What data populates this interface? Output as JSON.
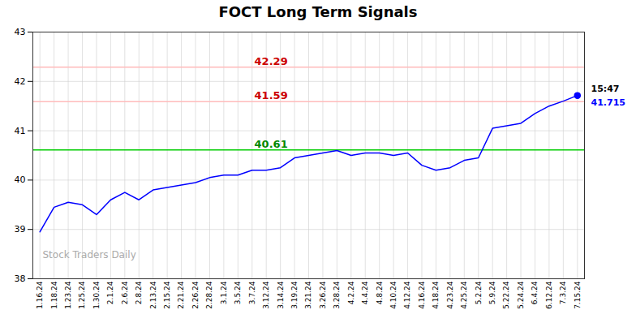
{
  "chart_data": {
    "type": "line",
    "title": "FOCT Long Term Signals",
    "categories": [
      "1.16.24",
      "1.18.24",
      "1.23.24",
      "1.25.24",
      "1.30.24",
      "2.1.24",
      "2.6.24",
      "2.8.24",
      "2.13.24",
      "2.15.24",
      "2.21.24",
      "2.26.24",
      "2.28.24",
      "3.1.24",
      "3.5.24",
      "3.7.24",
      "3.12.24",
      "3.14.24",
      "3.19.24",
      "3.21.24",
      "3.26.24",
      "3.28.24",
      "4.2.24",
      "4.4.24",
      "4.8.24",
      "4.10.24",
      "4.12.24",
      "4.16.24",
      "4.18.24",
      "4.23.24",
      "4.25.24",
      "5.2.24",
      "5.9.24",
      "5.22.24",
      "5.24.24",
      "6.4.24",
      "6.12.24",
      "7.3.24",
      "7.15.24"
    ],
    "values": [
      38.95,
      39.45,
      39.55,
      39.5,
      39.3,
      39.6,
      39.75,
      39.6,
      39.8,
      39.85,
      39.9,
      39.95,
      40.05,
      40.1,
      40.1,
      40.2,
      40.2,
      40.25,
      40.45,
      40.5,
      40.55,
      40.6,
      40.5,
      40.55,
      40.55,
      40.5,
      40.55,
      40.3,
      40.2,
      40.25,
      40.4,
      40.45,
      41.05,
      41.1,
      41.15,
      41.35,
      41.5,
      41.6,
      41.715
    ],
    "color": "blue",
    "ylim": [
      38,
      43
    ],
    "yticks": [
      38,
      39,
      40,
      41,
      42,
      43
    ],
    "grid": true,
    "reference_lines": [
      {
        "value": 42.29,
        "label": "42.29",
        "color": "#ffbbbb",
        "label_color": "#cc0000"
      },
      {
        "value": 41.59,
        "label": "41.59",
        "color": "#ffbbbb",
        "label_color": "#cc0000"
      },
      {
        "value": 40.61,
        "label": "40.61",
        "color": "#00cc00",
        "label_color": "#008800"
      }
    ],
    "last_point": {
      "marker": "circle",
      "color": "blue",
      "time_label": "15:47",
      "time_label_color": "black",
      "value_label": "41.715",
      "value_label_color": "blue"
    },
    "watermark": {
      "text": "Stock Traders Daily",
      "color": "#aaaaaa"
    }
  }
}
